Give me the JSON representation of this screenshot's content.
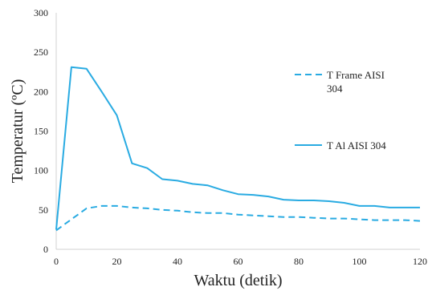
{
  "chart_data": {
    "type": "line",
    "title": "",
    "xlabel": "Waktu (detik)",
    "ylabel": "Temperatur (ºC)",
    "xlim": [
      0,
      120
    ],
    "ylim": [
      0,
      300
    ],
    "x_ticks": [
      0,
      20,
      40,
      60,
      80,
      100,
      120
    ],
    "y_ticks": [
      0,
      50,
      100,
      150,
      200,
      250,
      300
    ],
    "grid": false,
    "legend_position": "right",
    "series": [
      {
        "name": "T Frame AISI 304",
        "style": "dashed",
        "color": "#29abe2",
        "x": [
          0,
          5,
          10,
          15,
          20,
          25,
          30,
          35,
          40,
          45,
          50,
          55,
          60,
          65,
          70,
          75,
          80,
          85,
          90,
          95,
          100,
          105,
          110,
          115,
          120
        ],
        "y": [
          24,
          38,
          52,
          55,
          55,
          53,
          52,
          50,
          49,
          47,
          46,
          46,
          44,
          43,
          42,
          41,
          41,
          40,
          39,
          39,
          38,
          37,
          37,
          37,
          36
        ]
      },
      {
        "name": "T Al AISI 304",
        "style": "solid",
        "color": "#29abe2",
        "x": [
          0,
          5,
          10,
          15,
          20,
          25,
          30,
          35,
          40,
          45,
          50,
          55,
          60,
          65,
          70,
          75,
          80,
          85,
          90,
          95,
          100,
          105,
          110,
          115,
          120
        ],
        "y": [
          25,
          231,
          229,
          200,
          170,
          109,
          103,
          89,
          87,
          83,
          81,
          75,
          70,
          69,
          67,
          63,
          62,
          62,
          61,
          59,
          55,
          55,
          53,
          53,
          53
        ]
      }
    ]
  }
}
